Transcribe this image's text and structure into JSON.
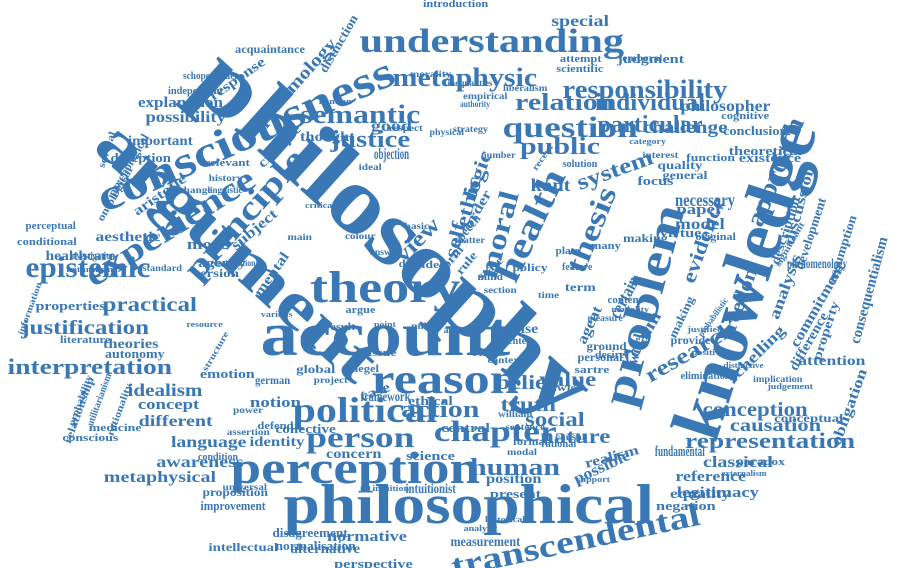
{
  "colors": {
    "word": "#3a78b5",
    "background": "#ffffff"
  },
  "words": [
    "philosophy",
    "argument",
    "knowledge",
    "account",
    "philosophical",
    "problem",
    "consciousness",
    "theory",
    "perception",
    "reason",
    "understanding",
    "transcendental",
    "experience",
    "political",
    "health",
    "principle",
    "thesis",
    "epistemic",
    "chapter",
    "question",
    "person",
    "semantic",
    "metaphysic",
    "responsibility",
    "relation",
    "individual",
    "moral",
    "ethic",
    "self",
    "logic",
    "view",
    "justice",
    "public",
    "particular",
    "approach",
    "evidence",
    "freedom",
    "research",
    "representation",
    "human",
    "nature",
    "action",
    "belief",
    "value",
    "truth",
    "social",
    "system",
    "kant",
    "interpretation",
    "justification",
    "practical",
    "idealism",
    "conception",
    "causation",
    "awareness",
    "metaphysical",
    "language",
    "different",
    "concept",
    "notion",
    "identity",
    "epistemology",
    "possibility",
    "explanation",
    "important",
    "deception",
    "aristotle",
    "aesthetic",
    "healthcare",
    "properties",
    "theories",
    "autonomy",
    "emotion",
    "mental",
    "more",
    "subject",
    "agency",
    "version",
    "challenge",
    "philosopher",
    "conclusion",
    "theoretical",
    "existence",
    "discussion",
    "commitment",
    "analysis",
    "schelling",
    "obligation",
    "consequentialism",
    "phenomenology",
    "attention",
    "property",
    "assumption",
    "development",
    "description",
    "difference",
    "classical",
    "reference",
    "legitimacy",
    "fundamental",
    "equality",
    "negation",
    "measurement",
    "normative",
    "alternative",
    "perspective",
    "normalisation",
    "disagreement",
    "intellectual",
    "improvement",
    "proposition",
    "intuitionist",
    "concern",
    "science",
    "position",
    "present",
    "possible",
    "realism",
    "necessary",
    "model",
    "paper",
    "certain",
    "claim",
    "world",
    "agent",
    "sense",
    "case",
    "speech",
    "form",
    "rule",
    "state",
    "term",
    "order",
    "objection",
    "good",
    "thought",
    "critique",
    "response",
    "framework",
    "ethical",
    "central",
    "german",
    "global",
    "special",
    "acquaintance",
    "schopenhauer",
    "independent",
    "distinction",
    "psychological",
    "ontological",
    "perceptual",
    "conditional",
    "investigation",
    "medicine",
    "conscious",
    "relationship",
    "utilitarianism",
    "rationality",
    "literature",
    "collective",
    "condition",
    "defend",
    "relevant",
    "attempt",
    "scientific",
    "judgment",
    "introduction",
    "inequalities",
    "empirical",
    "morality",
    "liberalism",
    "authority",
    "physical",
    "kantian",
    "strategy",
    "number",
    "respect",
    "answer",
    "ideal",
    "recent",
    "focus",
    "general",
    "solution",
    "quality",
    "function",
    "cognitive",
    "conceptual",
    "judgement",
    "implication",
    "distinctive",
    "paradox",
    "externalism",
    "elimination",
    "positive",
    "justified",
    "original",
    "ground",
    "virtue",
    "provide",
    "making",
    "content",
    "desire",
    "many",
    "sartre",
    "feature",
    "rawls",
    "causal",
    "rational",
    "historical",
    "analytic",
    "intuition",
    "structure",
    "universal",
    "standard",
    "naturalism",
    "information",
    "probability",
    "assertion",
    "resource",
    "various",
    "context",
    "section",
    "personal",
    "making",
    "mind",
    "idea",
    "data",
    "policy",
    "plato",
    "other",
    "issue",
    "hegel",
    "result",
    "argue",
    "formal",
    "modal",
    "william",
    "sentence",
    "fichte",
    "support",
    "probabilistic",
    "significant",
    "temporal",
    "change",
    "history",
    "linguistic",
    "consideration",
    "several",
    "critical",
    "colour",
    "main",
    "basic",
    "matter",
    "time",
    "mill",
    "point",
    "article",
    "project",
    "power",
    "pleasure",
    "modality",
    "category",
    "interest"
  ]
}
